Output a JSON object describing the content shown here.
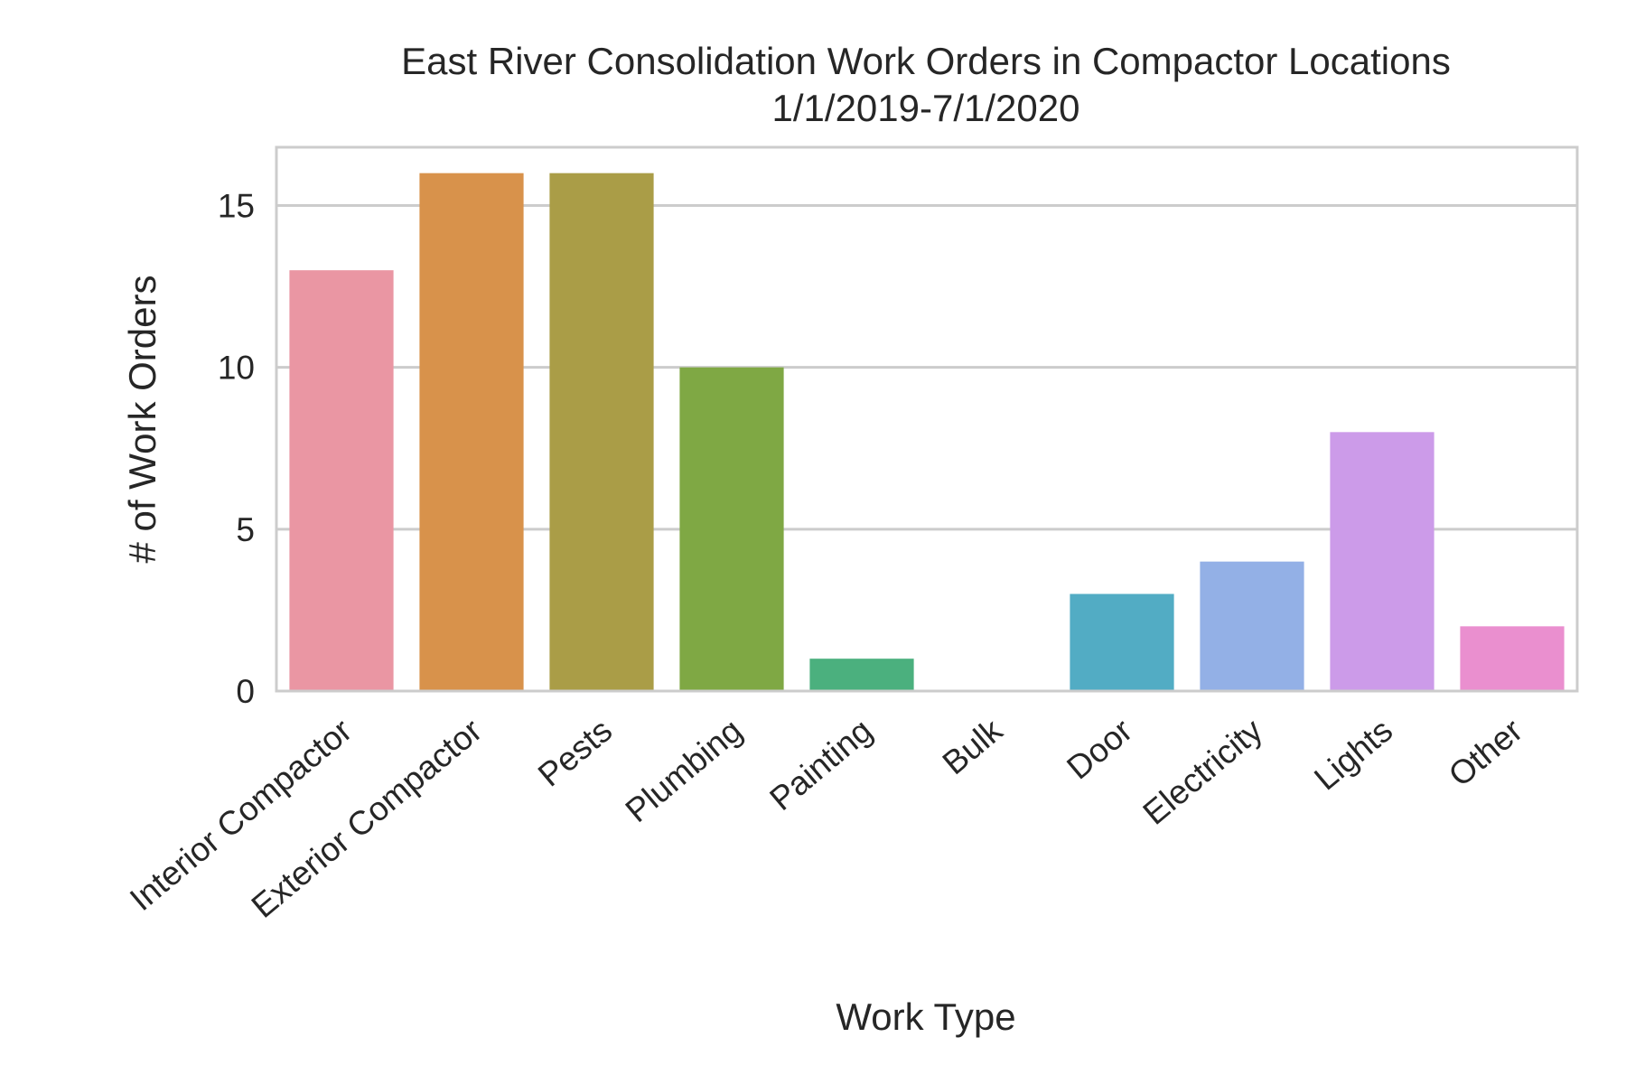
{
  "chart_data": {
    "type": "bar",
    "title": "East River Consolidation Work Orders in Compactor Locations",
    "subtitle": "1/1/2019-7/1/2020",
    "xlabel": "Work Type",
    "ylabel": "# of Work Orders",
    "categories": [
      "Interior Compactor",
      "Exterior Compactor",
      "Pests",
      "Plumbing",
      "Painting",
      "Bulk",
      "Door",
      "Electricity",
      "Lights",
      "Other"
    ],
    "values": [
      13,
      16,
      16,
      10,
      1,
      0,
      3,
      4,
      8,
      2
    ],
    "colors": [
      "#ea96a3",
      "#d8924b",
      "#aa9d47",
      "#7fa844",
      "#4bb07e",
      "#4fad9b",
      "#52acc4",
      "#93b0e6",
      "#cc9be9",
      "#ea8fcf"
    ],
    "ylim": [
      0,
      16.8
    ],
    "yticks": [
      0,
      5,
      10,
      15
    ],
    "grid": "horizontal"
  }
}
